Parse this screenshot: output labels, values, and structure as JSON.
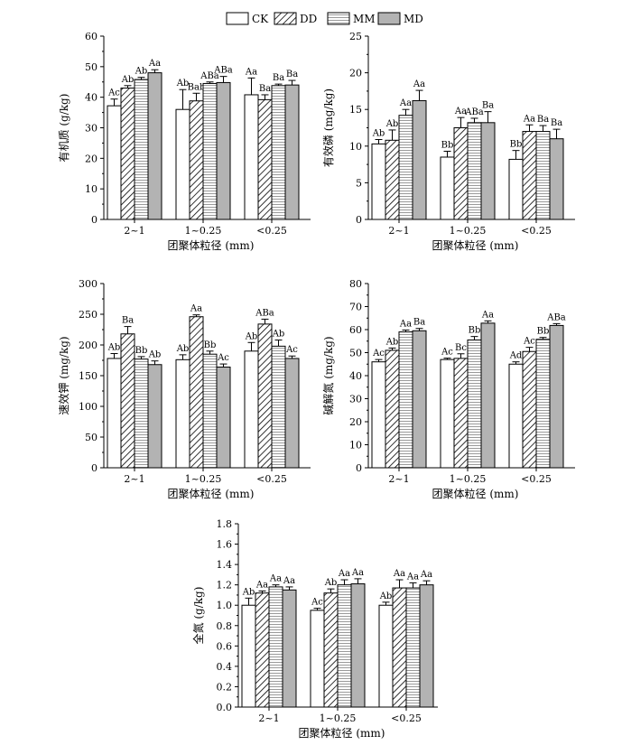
{
  "legend": {
    "items": [
      {
        "name": "CK",
        "fill": "white"
      },
      {
        "name": "DD",
        "fill": "diag"
      },
      {
        "name": "MM",
        "fill": "horiz"
      },
      {
        "name": "MD",
        "fill": "gray"
      }
    ]
  },
  "colors": {
    "md_fill": "#b3b3b3",
    "stroke": "#000000"
  },
  "chart_data": [
    {
      "type": "bar",
      "ylabel": "有机质 (g/kg)",
      "xlabel": "团聚体粒径 (mm)",
      "categories": [
        "2~1",
        "1~0.25",
        "<0.25"
      ],
      "ylim": [
        0,
        60
      ],
      "yticks": [
        0,
        10,
        20,
        30,
        40,
        50,
        60
      ],
      "series": [
        {
          "name": "CK",
          "values": [
            37.2,
            36.0,
            40.8
          ],
          "errors": [
            2.2,
            6.5,
            5.5
          ],
          "labels": [
            "Ac",
            "Ab",
            "Aa"
          ]
        },
        {
          "name": "DD",
          "values": [
            43.0,
            38.8,
            39.2
          ],
          "errors": [
            0.8,
            2.5,
            1.6
          ],
          "labels": [
            "Ab",
            "Bab",
            "Ba"
          ]
        },
        {
          "name": "MM",
          "values": [
            45.8,
            44.5,
            43.8
          ],
          "errors": [
            0.7,
            0.5,
            0.5
          ],
          "labels": [
            "Ab",
            "ABa",
            "Ba"
          ]
        },
        {
          "name": "MD",
          "values": [
            48.0,
            44.8,
            44.0
          ],
          "errors": [
            1.0,
            2.0,
            1.5
          ],
          "labels": [
            "Aa",
            "ABa",
            "Ba"
          ]
        }
      ]
    },
    {
      "type": "bar",
      "ylabel": "有效磷 (mg/kg)",
      "xlabel": "团聚体粒径 (mm)",
      "categories": [
        "2~1",
        "1~0.25",
        "<0.25"
      ],
      "ylim": [
        0,
        25
      ],
      "yticks": [
        0,
        5,
        10,
        15,
        20,
        25
      ],
      "series": [
        {
          "name": "CK",
          "values": [
            10.3,
            8.5,
            8.2
          ],
          "errors": [
            0.6,
            0.8,
            1.2
          ],
          "labels": [
            "Ab",
            "Bb",
            "Bb"
          ]
        },
        {
          "name": "DD",
          "values": [
            10.8,
            12.5,
            12.0
          ],
          "errors": [
            1.4,
            1.4,
            0.9
          ],
          "labels": [
            "Ab",
            "Aa",
            "Aa"
          ]
        },
        {
          "name": "MM",
          "values": [
            14.2,
            13.2,
            12.0
          ],
          "errors": [
            0.8,
            0.6,
            0.8
          ],
          "labels": [
            "Aa",
            "ABa",
            "Ba"
          ]
        },
        {
          "name": "MD",
          "values": [
            16.2,
            13.2,
            11.0
          ],
          "errors": [
            1.4,
            1.5,
            1.3
          ],
          "labels": [
            "Aa",
            "Ba",
            "Ba"
          ]
        }
      ]
    },
    {
      "type": "bar",
      "ylabel": "速效钾 (mg/kg)",
      "xlabel": "团聚体粒径 (mm)",
      "categories": [
        "2~1",
        "1~0.25",
        "<0.25"
      ],
      "ylim": [
        0,
        300
      ],
      "yticks": [
        0,
        50,
        100,
        150,
        200,
        250,
        300
      ],
      "series": [
        {
          "name": "CK",
          "values": [
            178,
            176,
            190
          ],
          "errors": [
            8,
            8,
            14
          ],
          "labels": [
            "Ab",
            "Ab",
            "Ab"
          ]
        },
        {
          "name": "DD",
          "values": [
            218,
            246,
            234
          ],
          "errors": [
            12,
            3,
            8
          ],
          "labels": [
            "Ba",
            "Aa",
            "ABa"
          ]
        },
        {
          "name": "MM",
          "values": [
            177,
            185,
            198
          ],
          "errors": [
            4,
            5,
            10
          ],
          "labels": [
            "Bb",
            "Bb",
            "Ab"
          ]
        },
        {
          "name": "MD",
          "values": [
            168,
            164,
            178
          ],
          "errors": [
            6,
            5,
            4
          ],
          "labels": [
            "Ab",
            "Ac",
            "Ac"
          ]
        }
      ]
    },
    {
      "type": "bar",
      "ylabel": "碱解氮 (mg/kg)",
      "xlabel": "团聚体粒径 (mm)",
      "categories": [
        "2~1",
        "1~0.25",
        "<0.25"
      ],
      "ylim": [
        0,
        80
      ],
      "yticks": [
        0,
        10,
        20,
        30,
        40,
        50,
        60,
        70,
        80
      ],
      "series": [
        {
          "name": "CK",
          "values": [
            46.0,
            47.0,
            45.0
          ],
          "errors": [
            1.0,
            0.6,
            1.0
          ],
          "labels": [
            "Ac",
            "Ac",
            "Ad"
          ]
        },
        {
          "name": "DD",
          "values": [
            51.0,
            47.5,
            50.5
          ],
          "errors": [
            1.0,
            2.0,
            1.8
          ],
          "labels": [
            "Ab",
            "Bc",
            "Ac"
          ]
        },
        {
          "name": "MM",
          "values": [
            59.0,
            55.5,
            55.8
          ],
          "errors": [
            0.8,
            1.5,
            0.8
          ],
          "labels": [
            "Aa",
            "Bb",
            "Bb"
          ]
        },
        {
          "name": "MD",
          "values": [
            59.5,
            62.8,
            61.8
          ],
          "errors": [
            1.0,
            1.0,
            0.8
          ],
          "labels": [
            "Ba",
            "Aa",
            "ABa"
          ]
        }
      ]
    },
    {
      "type": "bar",
      "ylabel": "全氮 (g/kg)",
      "xlabel": "团聚体粒径 (mm)",
      "categories": [
        "2~1",
        "1~0.25",
        "<0.25"
      ],
      "ylim": [
        0,
        1.8
      ],
      "yticks": [
        0.0,
        0.2,
        0.4,
        0.6,
        0.8,
        1.0,
        1.2,
        1.4,
        1.6,
        1.8
      ],
      "series": [
        {
          "name": "CK",
          "values": [
            1.0,
            0.95,
            1.0
          ],
          "errors": [
            0.07,
            0.02,
            0.03
          ],
          "labels": [
            "Ab",
            "Ac",
            "Ab"
          ]
        },
        {
          "name": "DD",
          "values": [
            1.12,
            1.12,
            1.17
          ],
          "errors": [
            0.02,
            0.04,
            0.08
          ],
          "labels": [
            "Aa",
            "Ab",
            "Aa"
          ]
        },
        {
          "name": "MM",
          "values": [
            1.18,
            1.2,
            1.17
          ],
          "errors": [
            0.02,
            0.05,
            0.05
          ],
          "labels": [
            "Aa",
            "Aa",
            "Aa"
          ]
        },
        {
          "name": "MD",
          "values": [
            1.15,
            1.21,
            1.2
          ],
          "errors": [
            0.03,
            0.05,
            0.04
          ],
          "labels": [
            "Aa",
            "Aa",
            "Aa"
          ]
        }
      ]
    }
  ]
}
